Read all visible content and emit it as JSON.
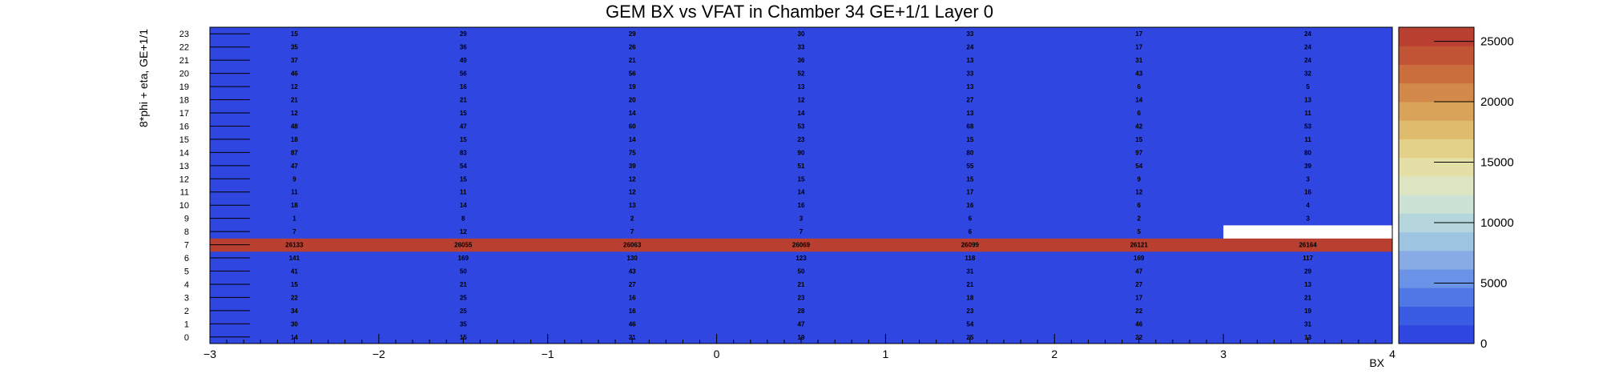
{
  "chart_data": {
    "type": "heatmap",
    "title": "GEM BX vs VFAT in Chamber 34 GE+1/1 Layer 0",
    "xlabel": "BX",
    "ylabel": "8*phi + eta, GE+1/1",
    "xlim": [
      -3,
      4
    ],
    "ylim": [
      0,
      24
    ],
    "x_ticks": [
      "−3",
      "−2",
      "−1",
      "0",
      "1",
      "2",
      "3",
      "4"
    ],
    "y_ticks": [
      "0",
      "1",
      "2",
      "3",
      "4",
      "5",
      "6",
      "7",
      "8",
      "9",
      "10",
      "11",
      "12",
      "13",
      "14",
      "15",
      "16",
      "17",
      "18",
      "19",
      "20",
      "21",
      "22",
      "23"
    ],
    "x_bins": [
      -3,
      -2,
      -1,
      0,
      1,
      2,
      3
    ],
    "y_bins": [
      0,
      1,
      2,
      3,
      4,
      5,
      6,
      7,
      8,
      9,
      10,
      11,
      12,
      13,
      14,
      15,
      16,
      17,
      18,
      19,
      20,
      21,
      22,
      23
    ],
    "values": [
      [
        14,
        15,
        21,
        19,
        25,
        22,
        13
      ],
      [
        30,
        35,
        46,
        47,
        54,
        46,
        31
      ],
      [
        34,
        25,
        16,
        28,
        23,
        22,
        19
      ],
      [
        22,
        25,
        16,
        23,
        18,
        17,
        21
      ],
      [
        15,
        21,
        27,
        21,
        21,
        27,
        13
      ],
      [
        41,
        50,
        43,
        50,
        31,
        47,
        29
      ],
      [
        141,
        169,
        130,
        123,
        118,
        169,
        117
      ],
      [
        26133,
        26055,
        26063,
        26069,
        26099,
        26121,
        26164
      ],
      [
        7,
        12,
        7,
        7,
        6,
        5,
        null
      ],
      [
        1,
        8,
        2,
        3,
        6,
        2,
        3
      ],
      [
        18,
        14,
        13,
        16,
        16,
        6,
        4
      ],
      [
        11,
        11,
        12,
        14,
        17,
        12,
        16
      ],
      [
        9,
        15,
        12,
        15,
        15,
        9,
        3
      ],
      [
        47,
        54,
        39,
        51,
        55,
        54,
        39
      ],
      [
        87,
        83,
        75,
        90,
        80,
        97,
        80
      ],
      [
        18,
        15,
        14,
        23,
        15,
        15,
        11
      ],
      [
        48,
        47,
        60,
        53,
        68,
        42,
        53
      ],
      [
        12,
        15,
        14,
        14,
        13,
        6,
        11
      ],
      [
        21,
        21,
        20,
        12,
        27,
        14,
        13
      ],
      [
        12,
        16,
        19,
        13,
        13,
        6,
        5
      ],
      [
        46,
        56,
        56,
        52,
        33,
        43,
        32
      ],
      [
        37,
        49,
        21,
        36,
        13,
        31,
        24
      ],
      [
        35,
        36,
        26,
        33,
        24,
        17,
        24
      ],
      [
        15,
        29,
        29,
        30,
        33,
        17,
        24
      ]
    ],
    "colorbar": {
      "min": 0,
      "max": 26164,
      "ticks": [
        0,
        5000,
        10000,
        15000,
        20000,
        25000
      ],
      "tick_labels": [
        "0",
        "5000",
        "10000",
        "15000",
        "20000",
        "25000"
      ],
      "palette": [
        "#2f46e0",
        "#3a5be4",
        "#4f77e6",
        "#6a92e6",
        "#87abe4",
        "#9dc4e0",
        "#b5d6dc",
        "#cce2d4",
        "#dde5c2",
        "#e4dfa6",
        "#e4d189",
        "#dfbc6d",
        "#d9a35a",
        "#d3894a",
        "#cb6e3e",
        "#c25436",
        "#b94030"
      ],
      "empty_color": "#ffffff"
    },
    "grid": false,
    "legend": "colorbar-right"
  }
}
